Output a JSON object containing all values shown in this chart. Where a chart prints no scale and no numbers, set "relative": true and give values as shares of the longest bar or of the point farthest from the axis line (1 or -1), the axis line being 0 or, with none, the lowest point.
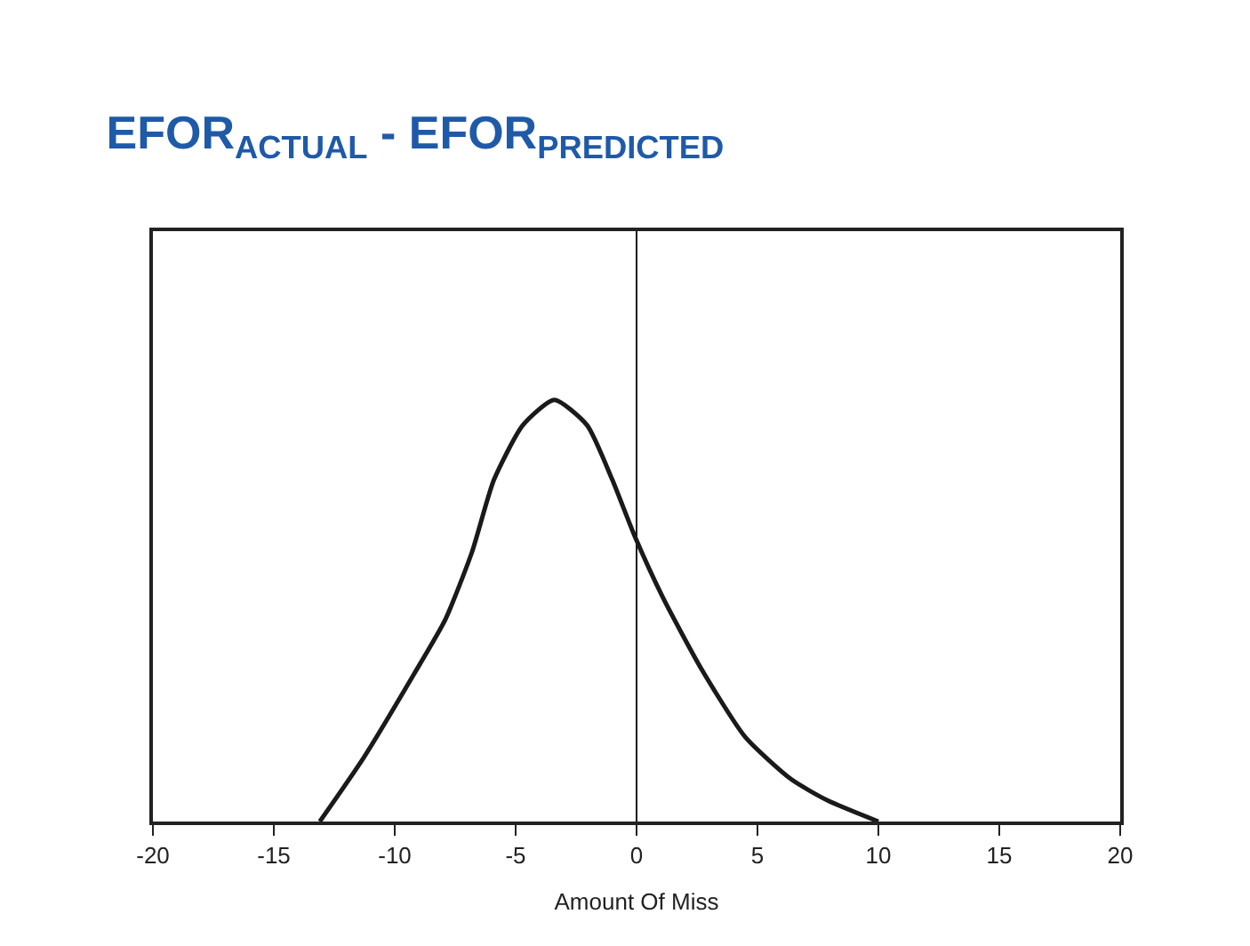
{
  "chart_data": {
    "type": "line",
    "title": "EFOR$_{ACTUAL}$ - EFOR$_{PREDICTED}$",
    "xlabel": "Amount Of Miss",
    "relative": true,
    "x": [
      -13.1,
      -11.3,
      -9.2,
      -7.9,
      -6.8,
      -5.9,
      -4.7,
      -3.4,
      -2.05,
      -1.0,
      -0.1,
      1.1,
      2.7,
      4.5,
      6.4,
      7.9,
      10.0
    ],
    "series": [
      {
        "color": "#1a1a1a",
        "values": [
          0,
          0.15,
          0.35,
          0.48,
          0.64,
          0.81,
          0.94,
          1.0,
          0.94,
          0.81,
          0.68,
          0.53,
          0.36,
          0.2,
          0.1,
          0.05,
          0
        ]
      }
    ],
    "xlim": [
      -20,
      20
    ],
    "xticks": [
      -20,
      -15,
      -10,
      -5,
      0,
      5,
      10,
      15,
      20
    ],
    "ref_lines": [
      {
        "axis": "x",
        "value": 0,
        "color": "#1a1a1a"
      }
    ],
    "marker": "none",
    "line_style": "solid"
  }
}
